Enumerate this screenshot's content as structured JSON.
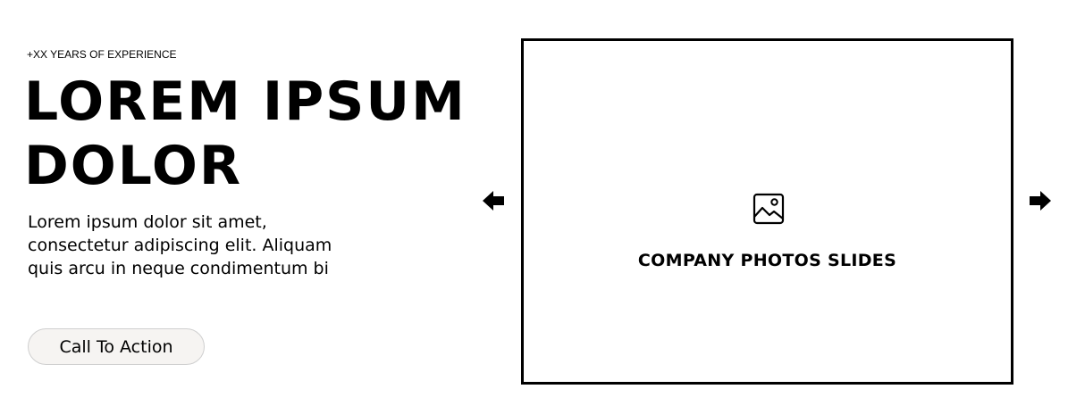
{
  "hero": {
    "eyebrow": "+XX YEARS OF EXPERIENCE",
    "headline_line1": "LOREM IPSUM",
    "headline_line2": "DOLOR",
    "body_line1": "Lorem ipsum dolor sit amet,",
    "body_line2": "consectetur adipiscing elit. Aliquam",
    "body_line3": "quis arcu in neque condimentum bi",
    "cta_label": "Call To Action"
  },
  "slider": {
    "placeholder_label": "COMPANY PHOTOS SLIDES",
    "placeholder_icon": "image-icon",
    "prev_icon": "arrow-left-icon",
    "next_icon": "arrow-right-icon"
  },
  "colors": {
    "text": "#000000",
    "background": "#ffffff",
    "cta_background": "#f6f4f2",
    "cta_border": "#cfcfcf"
  }
}
